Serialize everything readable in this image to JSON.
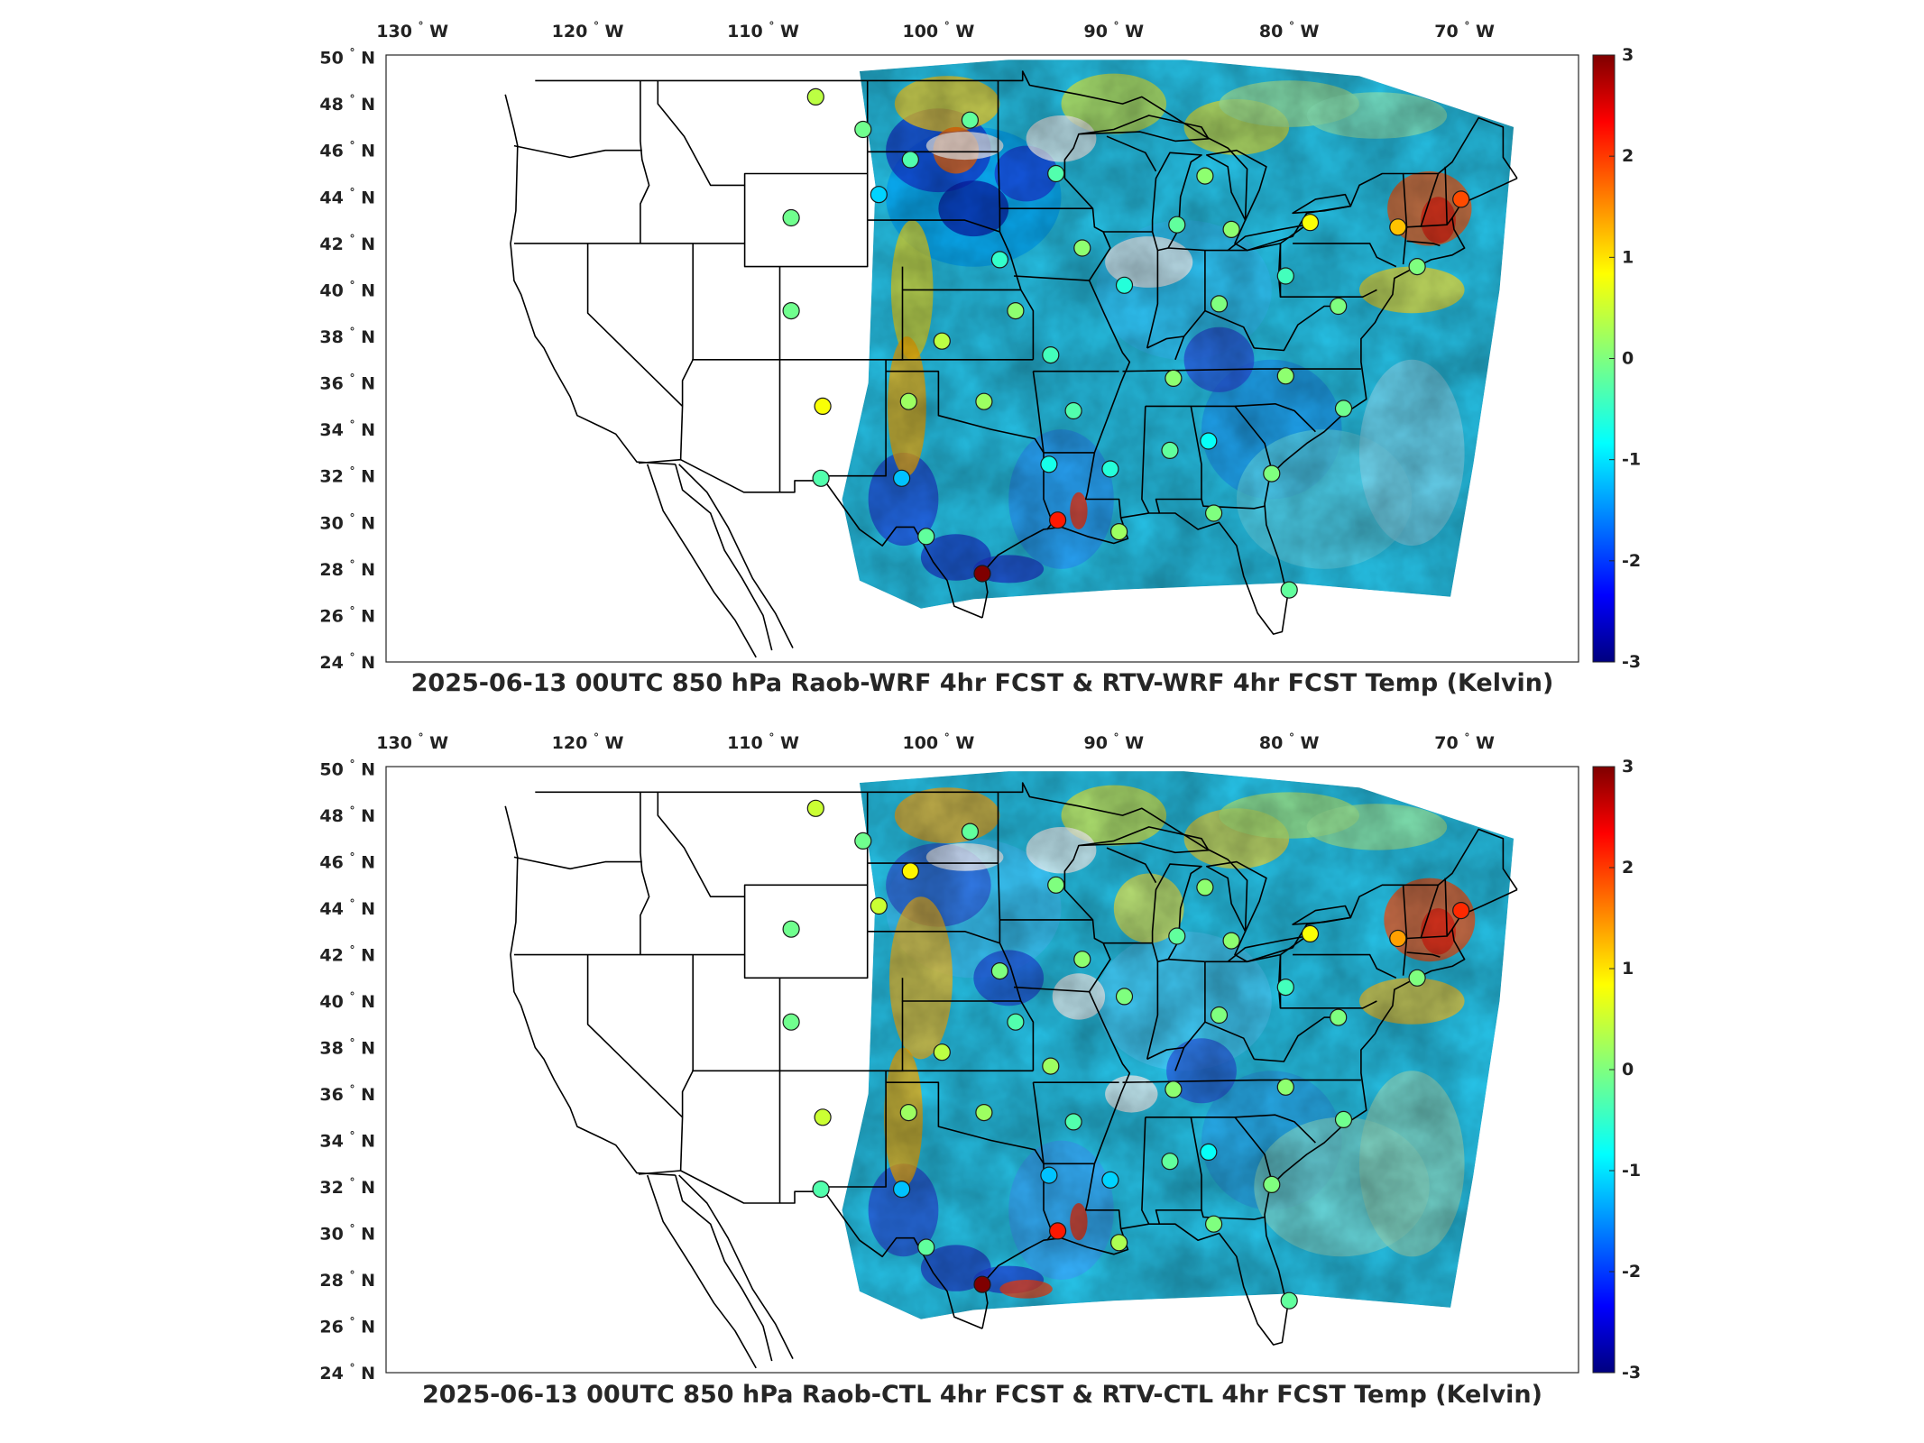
{
  "panels": [
    {
      "title": "2025-06-13 00UTC 850 hPa Raob-WRF 4hr FCST & RTV-WRF 4hr FCST Temp (Kelvin)",
      "stations": [
        {
          "lon": -107,
          "lat": 48.3,
          "v": 0.4
        },
        {
          "lon": -104.3,
          "lat": 46.9,
          "v": -0.1
        },
        {
          "lon": -101.6,
          "lat": 45.6,
          "v": -0.3
        },
        {
          "lon": -98.2,
          "lat": 47.3,
          "v": -0.2
        },
        {
          "lon": -103.4,
          "lat": 44.1,
          "v": -1.1
        },
        {
          "lon": -108.4,
          "lat": 43.1,
          "v": -0.1
        },
        {
          "lon": -93.3,
          "lat": 45.0,
          "v": -0.3
        },
        {
          "lon": -91.8,
          "lat": 41.8,
          "v": 0.1
        },
        {
          "lon": -96.5,
          "lat": 41.3,
          "v": -0.5
        },
        {
          "lon": -89.4,
          "lat": 40.2,
          "v": -0.6
        },
        {
          "lon": -86.4,
          "lat": 42.8,
          "v": -0.2
        },
        {
          "lon": -84.8,
          "lat": 44.9,
          "v": 0.1
        },
        {
          "lon": -83.3,
          "lat": 42.6,
          "v": 0.1
        },
        {
          "lon": -78.8,
          "lat": 42.9,
          "v": 0.8
        },
        {
          "lon": -73.8,
          "lat": 42.7,
          "v": 1.2
        },
        {
          "lon": -70.2,
          "lat": 43.9,
          "v": 1.9
        },
        {
          "lon": -108.4,
          "lat": 39.1,
          "v": -0.1
        },
        {
          "lon": -95.6,
          "lat": 39.1,
          "v": 0.1
        },
        {
          "lon": -101.7,
          "lat": 35.2,
          "v": 0.2
        },
        {
          "lon": -99.8,
          "lat": 37.8,
          "v": 0.4
        },
        {
          "lon": -97.4,
          "lat": 35.2,
          "v": 0.2
        },
        {
          "lon": -106.6,
          "lat": 35.0,
          "v": 0.8
        },
        {
          "lon": -93.6,
          "lat": 37.2,
          "v": -0.4
        },
        {
          "lon": -92.3,
          "lat": 34.8,
          "v": -0.3
        },
        {
          "lon": -86.6,
          "lat": 36.2,
          "v": 0.1
        },
        {
          "lon": -84.0,
          "lat": 39.4,
          "v": 0.0
        },
        {
          "lon": -80.2,
          "lat": 40.6,
          "v": -0.4
        },
        {
          "lon": -80.2,
          "lat": 36.3,
          "v": 0.1
        },
        {
          "lon": -84.6,
          "lat": 33.5,
          "v": -0.8
        },
        {
          "lon": -86.8,
          "lat": 33.1,
          "v": -0.2
        },
        {
          "lon": -90.2,
          "lat": 32.3,
          "v": -0.6
        },
        {
          "lon": -93.7,
          "lat": 32.5,
          "v": -0.7
        },
        {
          "lon": -81.0,
          "lat": 32.1,
          "v": 0.0
        },
        {
          "lon": -76.9,
          "lat": 34.9,
          "v": -0.1
        },
        {
          "lon": -106.7,
          "lat": 31.9,
          "v": -0.3
        },
        {
          "lon": -102.1,
          "lat": 31.9,
          "v": -1.2
        },
        {
          "lon": -100.7,
          "lat": 29.4,
          "v": -0.2
        },
        {
          "lon": -97.5,
          "lat": 27.8,
          "v": 3.0
        },
        {
          "lon": -93.2,
          "lat": 30.1,
          "v": 2.2
        },
        {
          "lon": -89.7,
          "lat": 29.6,
          "v": 0.2
        },
        {
          "lon": -84.3,
          "lat": 30.4,
          "v": 0.0
        },
        {
          "lon": -80.0,
          "lat": 27.1,
          "v": -0.2
        },
        {
          "lon": -77.2,
          "lat": 39.3,
          "v": 0.0
        },
        {
          "lon": -72.7,
          "lat": 41.0,
          "v": 0.0
        }
      ]
    },
    {
      "title": "2025-06-13 00UTC 850 hPa Raob-CTL 4hr FCST & RTV-CTL 4hr FCST Temp (Kelvin)",
      "stations": [
        {
          "lon": -107,
          "lat": 48.3,
          "v": 0.5
        },
        {
          "lon": -104.3,
          "lat": 46.9,
          "v": -0.1
        },
        {
          "lon": -101.6,
          "lat": 45.6,
          "v": 0.9
        },
        {
          "lon": -98.2,
          "lat": 47.3,
          "v": -0.2
        },
        {
          "lon": -103.4,
          "lat": 44.1,
          "v": 0.5
        },
        {
          "lon": -108.4,
          "lat": 43.1,
          "v": -0.1
        },
        {
          "lon": -93.3,
          "lat": 45.0,
          "v": 0.0
        },
        {
          "lon": -91.8,
          "lat": 41.8,
          "v": 0.1
        },
        {
          "lon": -96.5,
          "lat": 41.3,
          "v": 0.0
        },
        {
          "lon": -89.4,
          "lat": 40.2,
          "v": 0.0
        },
        {
          "lon": -86.4,
          "lat": 42.8,
          "v": -0.2
        },
        {
          "lon": -84.8,
          "lat": 44.9,
          "v": 0.1
        },
        {
          "lon": -83.3,
          "lat": 42.6,
          "v": 0.1
        },
        {
          "lon": -78.8,
          "lat": 42.9,
          "v": 0.8
        },
        {
          "lon": -73.8,
          "lat": 42.7,
          "v": 1.4
        },
        {
          "lon": -70.2,
          "lat": 43.9,
          "v": 2.1
        },
        {
          "lon": -108.4,
          "lat": 39.1,
          "v": -0.1
        },
        {
          "lon": -95.6,
          "lat": 39.1,
          "v": -0.3
        },
        {
          "lon": -101.7,
          "lat": 35.2,
          "v": 0.2
        },
        {
          "lon": -99.8,
          "lat": 37.8,
          "v": 0.4
        },
        {
          "lon": -97.4,
          "lat": 35.2,
          "v": 0.2
        },
        {
          "lon": -106.6,
          "lat": 35.0,
          "v": 0.5
        },
        {
          "lon": -93.6,
          "lat": 37.2,
          "v": 0.2
        },
        {
          "lon": -92.3,
          "lat": 34.8,
          "v": -0.3
        },
        {
          "lon": -86.6,
          "lat": 36.2,
          "v": 0.1
        },
        {
          "lon": -84.0,
          "lat": 39.4,
          "v": 0.0
        },
        {
          "lon": -80.2,
          "lat": 40.6,
          "v": -0.4
        },
        {
          "lon": -80.2,
          "lat": 36.3,
          "v": 0.1
        },
        {
          "lon": -84.6,
          "lat": 33.5,
          "v": -0.8
        },
        {
          "lon": -86.8,
          "lat": 33.1,
          "v": -0.2
        },
        {
          "lon": -90.2,
          "lat": 32.3,
          "v": -1.1
        },
        {
          "lon": -93.7,
          "lat": 32.5,
          "v": -1.2
        },
        {
          "lon": -81.0,
          "lat": 32.1,
          "v": 0.0
        },
        {
          "lon": -76.9,
          "lat": 34.9,
          "v": -0.1
        },
        {
          "lon": -106.7,
          "lat": 31.9,
          "v": -0.3
        },
        {
          "lon": -102.1,
          "lat": 31.9,
          "v": -1.2
        },
        {
          "lon": -100.7,
          "lat": 29.4,
          "v": -0.2
        },
        {
          "lon": -97.5,
          "lat": 27.8,
          "v": 3.0
        },
        {
          "lon": -93.2,
          "lat": 30.1,
          "v": 2.2
        },
        {
          "lon": -89.7,
          "lat": 29.6,
          "v": 0.3
        },
        {
          "lon": -84.3,
          "lat": 30.4,
          "v": 0.0
        },
        {
          "lon": -80.0,
          "lat": 27.1,
          "v": -0.2
        },
        {
          "lon": -77.2,
          "lat": 39.3,
          "v": 0.0
        },
        {
          "lon": -72.7,
          "lat": 41.0,
          "v": 0.0
        }
      ]
    }
  ],
  "lon_labels": [
    "130",
    "120",
    "110",
    "100",
    "90",
    "80",
    "70"
  ],
  "lon_values": [
    -130,
    -120,
    -110,
    -100,
    -90,
    -80,
    -70
  ],
  "lon_suffix": "W",
  "lat_labels": [
    "50",
    "48",
    "46",
    "44",
    "42",
    "40",
    "38",
    "36",
    "34",
    "32",
    "30",
    "28",
    "26",
    "24"
  ],
  "lat_values": [
    50,
    48,
    46,
    44,
    42,
    40,
    38,
    36,
    34,
    32,
    30,
    28,
    26,
    24
  ],
  "lat_suffix": "N",
  "degree_symbol": "°",
  "colorbar": {
    "labels": [
      "3",
      "2",
      "1",
      "0",
      "-1",
      "-2",
      "-3"
    ],
    "values": [
      3,
      2,
      1,
      0,
      -1,
      -2,
      -3
    ],
    "range": [
      -3,
      3
    ],
    "colormap": "jet"
  },
  "colors": {
    "jet": [
      "#00007f",
      "#0000ff",
      "#007fff",
      "#00ffff",
      "#7fff7f",
      "#ffff00",
      "#ff7f00",
      "#ff0000",
      "#7f0000"
    ],
    "outline": "#000000",
    "missing": "#ffffff"
  }
}
